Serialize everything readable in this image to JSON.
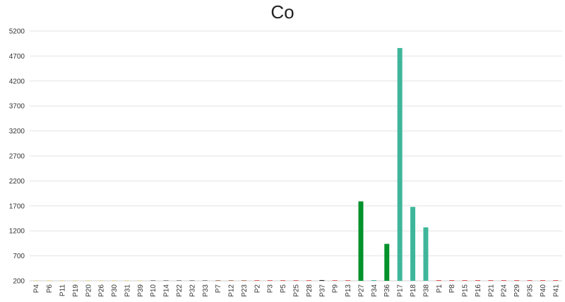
{
  "chart_data": {
    "type": "bar",
    "title": "Co",
    "xlabel": "",
    "ylabel": "",
    "ylim": [
      200,
      5200
    ],
    "yticks": [
      200,
      700,
      1200,
      1700,
      2200,
      2700,
      3200,
      3700,
      4200,
      4700,
      5200
    ],
    "grid": true,
    "legend": "none",
    "categories": [
      "P4",
      "P6",
      "P11",
      "P19",
      "P20",
      "P26",
      "P30",
      "P31",
      "P39",
      "P10",
      "P14",
      "P22",
      "P32",
      "P33",
      "P7",
      "P12",
      "P23",
      "P2",
      "P3",
      "P5",
      "P25",
      "P28",
      "P37",
      "P9",
      "P13",
      "P27",
      "P34",
      "P36",
      "P17",
      "P18",
      "P38",
      "P1",
      "P8",
      "P15",
      "P16",
      "P21",
      "P24",
      "P29",
      "P35",
      "P40",
      "P41"
    ],
    "values": [
      205,
      205,
      205,
      205,
      205,
      205,
      205,
      205,
      205,
      210,
      210,
      210,
      210,
      210,
      210,
      210,
      210,
      210,
      210,
      210,
      210,
      210,
      215,
      210,
      210,
      1790,
      210,
      940,
      4860,
      1680,
      1270,
      210,
      210,
      210,
      210,
      210,
      210,
      210,
      210,
      210,
      210
    ],
    "colors": [
      "#e8e0a0",
      "#e8e0a0",
      "#e8e0a0",
      "#e8e0a0",
      "#e8e0a0",
      "#e8e0a0",
      "#e8e0a0",
      "#e8e0a0",
      "#e8e0a0",
      "#8a8a8a",
      "#8a8a8a",
      "#8a8a8a",
      "#8a8a8a",
      "#8a8a8a",
      "#b08060",
      "#b08060",
      "#b08060",
      "#e06060",
      "#e06060",
      "#e06060",
      "#e06060",
      "#e06060",
      "#222222",
      "#e06060",
      "#e06060",
      "#00922b",
      "#3fb69b",
      "#00922b",
      "#3fb69b",
      "#3fb69b",
      "#3fb69b",
      "#e05050",
      "#e05050",
      "#e05050",
      "#e05050",
      "#e05050",
      "#e05050",
      "#e05050",
      "#e05050",
      "#e05050",
      "#e05050"
    ]
  }
}
